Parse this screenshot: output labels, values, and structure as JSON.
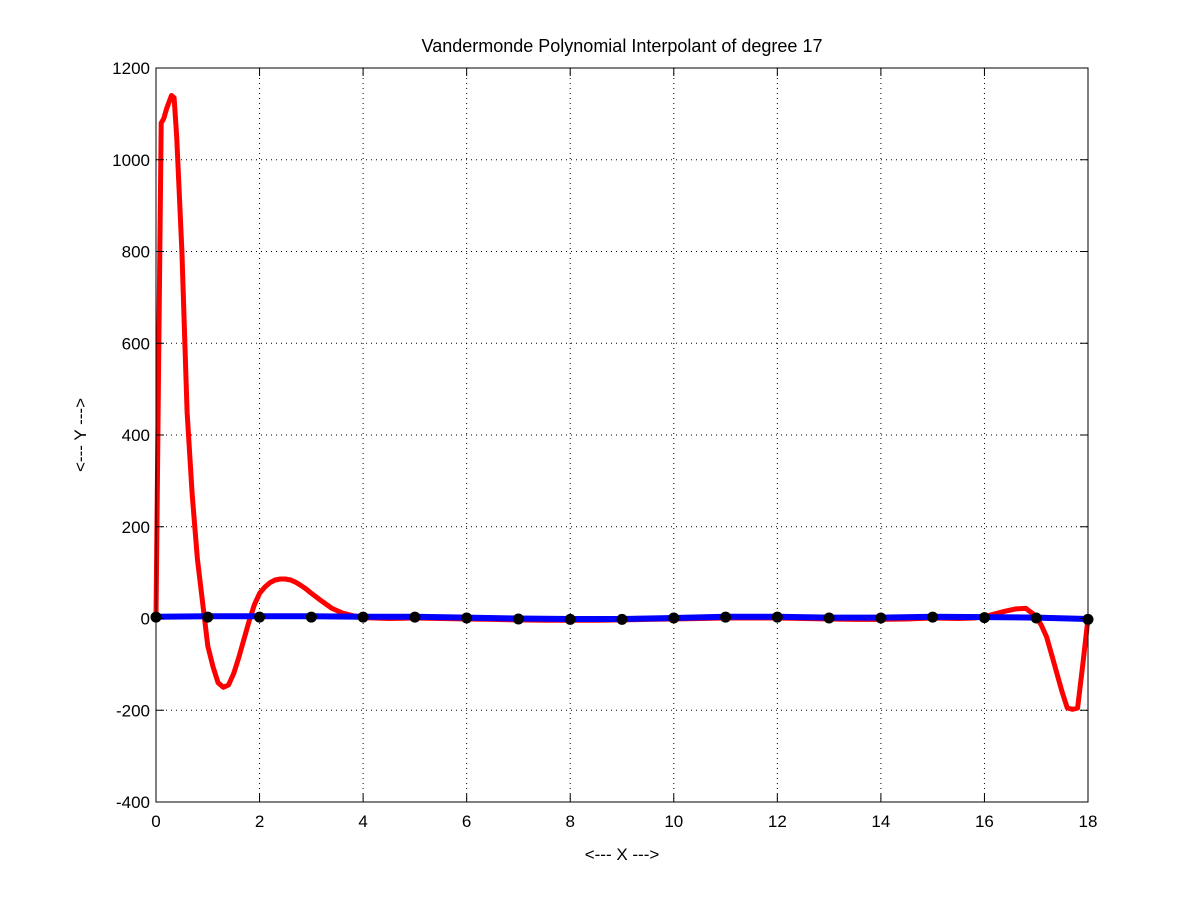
{
  "chart_data": {
    "type": "line",
    "title": "Vandermonde Polynomial Interpolant of degree 17",
    "xlabel": "<--- X --->",
    "ylabel": "<--- Y --->",
    "xlim": [
      0,
      18
    ],
    "ylim": [
      -400,
      1200
    ],
    "xticks": [
      0,
      2,
      4,
      6,
      8,
      10,
      12,
      14,
      16,
      18
    ],
    "yticks": [
      -400,
      -200,
      0,
      200,
      400,
      600,
      800,
      1000,
      1200
    ],
    "grid": true,
    "legend": "none",
    "series": [
      {
        "color": "#ff0000",
        "style": "line",
        "x": [
          0,
          0.05,
          0.1,
          0.15,
          0.2,
          0.3,
          0.35,
          0.4,
          0.5,
          0.6,
          0.7,
          0.8,
          0.9,
          1.0,
          1.1,
          1.2,
          1.3,
          1.4,
          1.5,
          1.6,
          1.7,
          1.8,
          1.9,
          2.0,
          2.1,
          2.2,
          2.3,
          2.4,
          2.5,
          2.6,
          2.7,
          2.8,
          2.9,
          3.0,
          3.2,
          3.4,
          3.6,
          3.8,
          4.0,
          4.5,
          5.0,
          5.5,
          6.0,
          6.5,
          7.0,
          7.5,
          8.0,
          8.5,
          9.0,
          9.5,
          10.0,
          10.5,
          11.0,
          11.5,
          12.0,
          12.5,
          13.0,
          13.5,
          14.0,
          14.5,
          15.0,
          15.5,
          15.8,
          16.0,
          16.2,
          16.4,
          16.6,
          16.8,
          17.0,
          17.1,
          17.2,
          17.3,
          17.4,
          17.5,
          17.6,
          17.7,
          17.8,
          17.9,
          18.0
        ],
        "y": [
          0,
          550,
          1080,
          1090,
          1110,
          1140,
          1135,
          1050,
          800,
          450,
          270,
          130,
          35,
          -60,
          -105,
          -140,
          -150,
          -145,
          -120,
          -85,
          -45,
          -5,
          30,
          55,
          68,
          78,
          84,
          86,
          86,
          84,
          79,
          72,
          64,
          55,
          38,
          22,
          12,
          6,
          2,
          0,
          1,
          0,
          -1,
          -2,
          -3,
          -4,
          -4,
          -4,
          -3,
          -2,
          -1,
          0,
          1,
          1,
          1,
          0,
          -1,
          -2,
          -2,
          -1,
          1,
          0,
          1,
          4,
          10,
          16,
          21,
          22,
          5,
          -15,
          -40,
          -80,
          -120,
          -160,
          -195,
          -198,
          -195,
          -100,
          0
        ]
      },
      {
        "color": "#0000ff",
        "style": "line",
        "x": [
          0,
          1,
          2,
          3,
          4,
          5,
          6,
          7,
          8,
          9,
          10,
          11,
          12,
          13,
          14,
          15,
          16,
          17,
          18
        ],
        "y": [
          4,
          5,
          5,
          5,
          4,
          4,
          2,
          0,
          -1,
          -1,
          1,
          4,
          4,
          2,
          2,
          4,
          3,
          2,
          -1
        ]
      },
      {
        "color": "#000000",
        "style": "markers",
        "x": [
          0,
          1,
          2,
          3,
          4,
          5,
          6,
          7,
          8,
          9,
          10,
          11,
          12,
          13,
          14,
          15,
          16,
          17,
          18
        ],
        "y": [
          3,
          3,
          3,
          3,
          3,
          3,
          1,
          -1,
          -2,
          -2,
          1,
          3,
          3,
          1,
          1,
          3,
          2,
          1,
          -2
        ]
      }
    ]
  }
}
